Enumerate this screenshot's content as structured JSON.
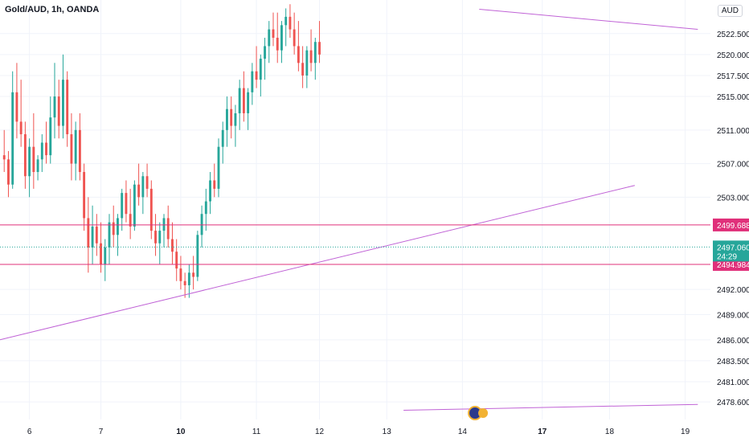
{
  "header": {
    "title": "Gold/AUD, 1h, OANDA",
    "currency": "AUD"
  },
  "colors": {
    "up": "#26a69a",
    "down": "#ef5350",
    "trendline": "#c063d6",
    "level": "#e0307a",
    "grid": "#f0f3fa",
    "last_price_bg": "#26a69a"
  },
  "chart_data": {
    "type": "candlestick",
    "title": "Gold/AUD, 1h, OANDA",
    "ylim": [
      2476.5,
      2526.5
    ],
    "y_ticks": [
      "2478.600",
      "2481.000",
      "2483.500",
      "2486.000",
      "2489.000",
      "2492.000",
      "2494.984",
      "2497.060",
      "2499.688",
      "2503.000",
      "2507.000",
      "2511.000",
      "2515.000",
      "2517.500",
      "2520.000",
      "2522.500"
    ],
    "y_tick_values": [
      2478.6,
      2481.0,
      2483.5,
      2486.0,
      2489.0,
      2492.0,
      2494.984,
      2497.06,
      2499.688,
      2503.0,
      2507.0,
      2511.0,
      2515.0,
      2517.5,
      2520.0,
      2522.5
    ],
    "x_ticks": [
      {
        "label": "6",
        "bar": 6,
        "bold": false
      },
      {
        "label": "7",
        "bar": 23,
        "bold": false
      },
      {
        "label": "10",
        "bar": 42,
        "bold": true
      },
      {
        "label": "11",
        "bar": 60,
        "bold": false
      },
      {
        "label": "12",
        "bar": 75,
        "bold": false
      },
      {
        "label": "13",
        "bar": 91,
        "bold": false
      },
      {
        "label": "14",
        "bar": 109,
        "bold": false
      },
      {
        "label": "17",
        "bar": 128,
        "bold": true
      },
      {
        "label": "18",
        "bar": 144,
        "bold": false
      },
      {
        "label": "19",
        "bar": 162,
        "bold": false
      }
    ],
    "x_range": [
      -1,
      168
    ],
    "horizontal_levels": [
      {
        "value": 2499.688,
        "label": "2499.688"
      },
      {
        "value": 2494.984,
        "label": "2494.984"
      }
    ],
    "last_price": {
      "value": 2497.06,
      "label": "2497.060",
      "countdown": "24:29"
    },
    "trendlines": [
      {
        "x1": -1,
        "y1": 2486.0,
        "x2": 150,
        "y2": 2504.4
      },
      {
        "x1": 113,
        "y1": 2525.4,
        "x2": 165,
        "y2": 2523.0
      },
      {
        "x1": 95,
        "y1": 2477.6,
        "x2": 165,
        "y2": 2478.3
      }
    ],
    "event_marker_bar": 112,
    "candles": [
      [
        2508,
        2511,
        2506,
        2507.5
      ],
      [
        2507.5,
        2508.5,
        2503,
        2504.5
      ],
      [
        2504.5,
        2518,
        2504,
        2515.5
      ],
      [
        2515.5,
        2519,
        2510,
        2512
      ],
      [
        2512,
        2517,
        2509,
        2510.5
      ],
      [
        2510.5,
        2512,
        2504,
        2505.5
      ],
      [
        2505.5,
        2510,
        2503,
        2509
      ],
      [
        2509,
        2513,
        2504,
        2506
      ],
      [
        2506,
        2508,
        2505,
        2507.5
      ],
      [
        2507.5,
        2510.5,
        2506,
        2509.5
      ],
      [
        2509.5,
        2512,
        2507,
        2508
      ],
      [
        2508,
        2515,
        2507,
        2512.5
      ],
      [
        2512.5,
        2519,
        2510,
        2515
      ],
      [
        2515,
        2517,
        2510,
        2511.5
      ],
      [
        2511.5,
        2520,
        2510,
        2517
      ],
      [
        2517,
        2518,
        2509,
        2510.5
      ],
      [
        2510.5,
        2513,
        2505,
        2507
      ],
      [
        2507,
        2512,
        2505,
        2511
      ],
      [
        2511,
        2513,
        2505,
        2506
      ],
      [
        2506,
        2507,
        2499,
        2500.5
      ],
      [
        2500.5,
        2503,
        2494,
        2497
      ],
      [
        2497,
        2502,
        2495,
        2499.5
      ],
      [
        2499.5,
        2501,
        2496,
        2497.5
      ],
      [
        2497.5,
        2500,
        2494,
        2495
      ],
      [
        2495,
        2498,
        2493,
        2497
      ],
      [
        2497,
        2501,
        2495,
        2500
      ],
      [
        2500,
        2502,
        2497,
        2498.5
      ],
      [
        2498.5,
        2501,
        2496,
        2500.5
      ],
      [
        2500.5,
        2504,
        2499,
        2503.5
      ],
      [
        2503.5,
        2505,
        2500,
        2501
      ],
      [
        2501,
        2504,
        2498,
        2499.5
      ],
      [
        2499.5,
        2505,
        2499,
        2504.5
      ],
      [
        2504.5,
        2507,
        2502,
        2503
      ],
      [
        2503,
        2506,
        2501,
        2505.5
      ],
      [
        2505.5,
        2507,
        2503,
        2504
      ],
      [
        2504,
        2505,
        2498,
        2499
      ],
      [
        2499,
        2501,
        2496,
        2497.5
      ],
      [
        2497.5,
        2500,
        2495,
        2499
      ],
      [
        2499,
        2501,
        2497,
        2500.5
      ],
      [
        2500.5,
        2502,
        2497,
        2498
      ],
      [
        2498,
        2500,
        2495,
        2496.5
      ],
      [
        2496.5,
        2498,
        2493,
        2494.5
      ],
      [
        2494.5,
        2496,
        2492,
        2493
      ],
      [
        2493,
        2494,
        2491,
        2492.5
      ],
      [
        2492.5,
        2495,
        2491,
        2494
      ],
      [
        2494,
        2496,
        2492,
        2493.5
      ],
      [
        2493.5,
        2499,
        2493,
        2498.5
      ],
      [
        2498.5,
        2502,
        2497,
        2501
      ],
      [
        2501,
        2504,
        2499,
        2502.5
      ],
      [
        2502.5,
        2506,
        2501,
        2505
      ],
      [
        2505,
        2507,
        2503,
        2504
      ],
      [
        2504,
        2510,
        2503,
        2509
      ],
      [
        2509,
        2512,
        2507,
        2511
      ],
      [
        2511,
        2515,
        2509,
        2513.5
      ],
      [
        2513.5,
        2515,
        2510,
        2511.5
      ],
      [
        2511.5,
        2514,
        2509,
        2513
      ],
      [
        2513,
        2517,
        2511,
        2516
      ],
      [
        2516,
        2518,
        2512,
        2513
      ],
      [
        2513,
        2516,
        2511,
        2515.5
      ],
      [
        2515.5,
        2519,
        2514,
        2518
      ],
      [
        2518,
        2521,
        2516,
        2517
      ],
      [
        2517,
        2520,
        2515,
        2519.5
      ],
      [
        2519.5,
        2522,
        2517,
        2521
      ],
      [
        2521,
        2524,
        2519,
        2523
      ],
      [
        2523,
        2525,
        2521,
        2522
      ],
      [
        2522,
        2525,
        2519,
        2520.5
      ],
      [
        2520.5,
        2524,
        2519,
        2523.5
      ],
      [
        2523.5,
        2525.5,
        2521,
        2524.5
      ],
      [
        2524.5,
        2526,
        2522,
        2523
      ],
      [
        2523,
        2525,
        2520,
        2521
      ],
      [
        2521,
        2524,
        2518,
        2519
      ],
      [
        2519,
        2521,
        2516,
        2517.5
      ],
      [
        2517.5,
        2521,
        2516,
        2520.5
      ],
      [
        2520.5,
        2523,
        2518,
        2519
      ],
      [
        2519,
        2522,
        2517,
        2521.5
      ],
      [
        2521.5,
        2524,
        2519,
        2520
      ]
    ]
  }
}
